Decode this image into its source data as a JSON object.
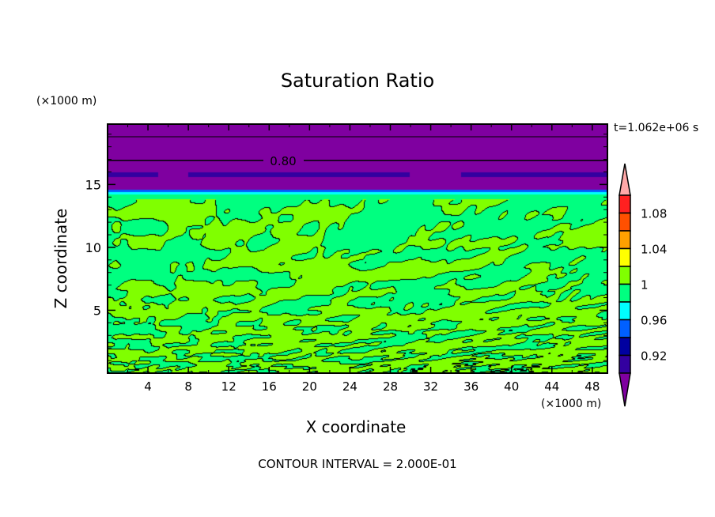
{
  "chart_data": {
    "type": "heatmap",
    "style": "filled contour",
    "title": "Saturation Ratio",
    "xlabel": "X coordinate",
    "ylabel": "Z coordinate",
    "x_unit": "(×1000 m)",
    "y_unit": "(×1000 m)",
    "xlim": [
      0,
      49.5
    ],
    "ylim": [
      0,
      19.8
    ],
    "x_ticks": [
      "4",
      "8",
      "12",
      "16",
      "20",
      "24",
      "28",
      "32",
      "36",
      "40",
      "44",
      "48"
    ],
    "y_ticks": [
      "5",
      "10",
      "15"
    ],
    "time_label": "t=1.062e+06 s",
    "contour_label": "0.80",
    "footer": "CONTOUR INTERVAL = 2.000E-01",
    "colorbar": {
      "levels": [
        0.9,
        0.92,
        0.94,
        0.96,
        0.98,
        1.0,
        1.02,
        1.04,
        1.06,
        1.08,
        1.1
      ],
      "tick_labels": [
        "1.08",
        "1.04",
        "1",
        "0.96",
        "0.92"
      ],
      "tick_values": [
        1.08,
        1.04,
        1.0,
        0.96,
        0.92
      ],
      "colors_top_to_bottom": [
        "#ff2020",
        "#ff5000",
        "#ffa000",
        "#ffff00",
        "#80ff00",
        "#00ff80",
        "#00ffff",
        "#0060ff",
        "#0000a0",
        "#3300a0"
      ],
      "over_color": "#ffa8a8",
      "under_color": "#7f00a0"
    }
  }
}
